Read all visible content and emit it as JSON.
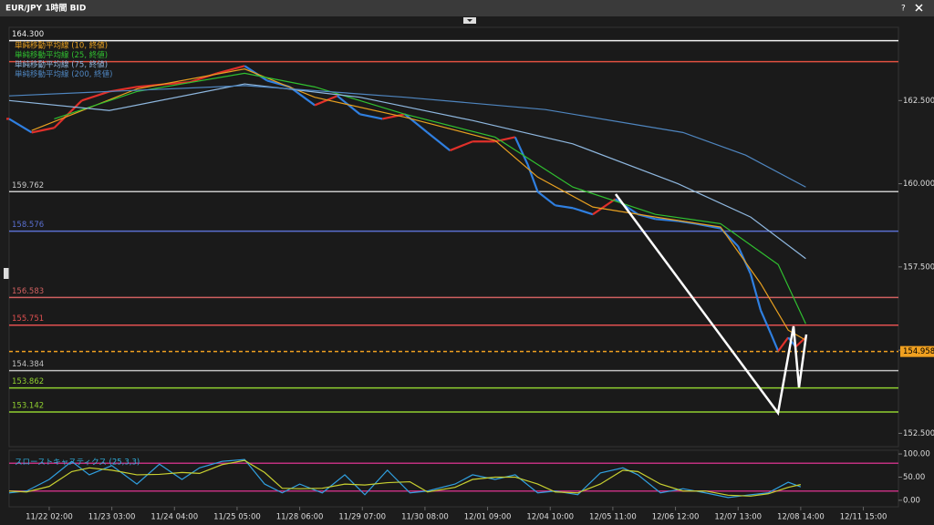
{
  "window": {
    "title": "EUR/JPY 1時間 BID",
    "help": "?"
  },
  "chart_data": [
    {
      "type": "line",
      "xlim": [
        -16,
        339
      ],
      "xticks": [
        {
          "value": 0,
          "label": "11/22 02:00"
        },
        {
          "value": 25,
          "label": "11/23 03:00"
        },
        {
          "value": 50,
          "label": "11/24 04:00"
        },
        {
          "value": 75,
          "label": "11/25 05:00"
        },
        {
          "value": 100,
          "label": "11/28 06:00"
        },
        {
          "value": 125,
          "label": "11/29 07:00"
        },
        {
          "value": 150,
          "label": "11/30 08:00"
        },
        {
          "value": 175,
          "label": "12/01 09:00"
        },
        {
          "value": 200,
          "label": "12/04 10:00"
        },
        {
          "value": 225,
          "label": "12/05 11:00"
        },
        {
          "value": 250,
          "label": "12/06 12:00"
        },
        {
          "value": 275,
          "label": "12/07 13:00"
        },
        {
          "value": 300,
          "label": "12/08 14:00"
        },
        {
          "value": 325,
          "label": "12/11 15:00"
        }
      ],
      "ylim": [
        152.1,
        164.7
      ],
      "yticks": [
        {
          "value": 152.5,
          "label": "152.500"
        },
        {
          "value": 155,
          "label": "155.000"
        },
        {
          "value": 157.5,
          "label": "157.500"
        },
        {
          "value": 160,
          "label": "160.000"
        },
        {
          "value": 162.5,
          "label": "162.500"
        }
      ],
      "series": [
        {
          "up_color": "#e0302a",
          "down_color": "#2f7fe0",
          "x": [
            -16,
            -7,
            2,
            13,
            24,
            35,
            46,
            56,
            67,
            78,
            87,
            96,
            106,
            115,
            124,
            133,
            142,
            151,
            160,
            169,
            178,
            186,
            191,
            195,
            202,
            209,
            217,
            226,
            235,
            242,
            251,
            258,
            268,
            275,
            280,
            284,
            288,
            291,
            295,
            298,
            302
          ],
          "values": [
            161.95,
            161.54,
            161.68,
            162.5,
            162.77,
            162.91,
            162.99,
            163.05,
            163.32,
            163.54,
            163.1,
            162.91,
            162.36,
            162.64,
            162.09,
            161.95,
            162.09,
            161.54,
            161.0,
            161.27,
            161.27,
            161.4,
            160.58,
            159.76,
            159.35,
            159.27,
            159.08,
            159.54,
            159.08,
            158.94,
            158.88,
            158.8,
            158.66,
            158.12,
            157.29,
            156.2,
            155.51,
            154.97,
            155.38,
            155.1,
            155.38
          ]
        },
        {
          "name": "単純移動平均線 (10, 終値)",
          "color": "#e8a020",
          "x": [
            -7,
            35,
            78,
            106,
            142,
            178,
            195,
            217,
            242,
            268,
            284,
            295,
            302
          ],
          "values": [
            161.6,
            162.85,
            163.45,
            162.6,
            162.0,
            161.3,
            160.2,
            159.3,
            159.0,
            158.7,
            157.0,
            155.6,
            155.3
          ]
        },
        {
          "name": "単純移動平均線 (25, 終値)",
          "color": "#30c030",
          "x": [
            2,
            35,
            78,
            106,
            142,
            178,
            209,
            242,
            268,
            291,
            302
          ],
          "values": [
            161.95,
            162.77,
            163.32,
            162.91,
            162.09,
            161.4,
            159.9,
            159.08,
            158.8,
            157.57,
            155.79
          ]
        },
        {
          "name": "単純移動平均線 (75, 終値)",
          "color": "#8fb8e0",
          "x": [
            -16,
            24,
            78,
            124,
            169,
            209,
            251,
            280,
            302
          ],
          "values": [
            162.5,
            162.2,
            163.0,
            162.6,
            161.9,
            161.2,
            160.0,
            159.0,
            157.75
          ]
        },
        {
          "name": "単純移動平均線 (200, 終値)",
          "color": "#4f86c0",
          "x": [
            -16,
            78,
            142,
            198,
            253,
            278,
            302
          ],
          "values": [
            162.64,
            162.95,
            162.6,
            162.23,
            161.54,
            160.86,
            159.9
          ]
        }
      ],
      "levels": [
        {
          "value": 164.3,
          "label": "164.300",
          "color": "#f0f0f0"
        },
        {
          "value": 163.67,
          "color": "#e05040"
        },
        {
          "value": 159.762,
          "label": "159.762",
          "color": "#c8c8c8"
        },
        {
          "value": 158.576,
          "label": "158.576",
          "color": "#5a6fd0"
        },
        {
          "value": 156.583,
          "label": "156.583",
          "color": "#d06060"
        },
        {
          "value": 155.751,
          "label": "155.751",
          "color": "#e05050"
        },
        {
          "value": 154.958,
          "label": "154.958",
          "color": "#f0a020",
          "style": "dashed"
        },
        {
          "value": 154.384,
          "label": "154.384",
          "color": "#c0c0c0"
        },
        {
          "value": 153.862,
          "label": "153.862",
          "color": "#90d030"
        },
        {
          "value": 153.142,
          "label": "153.142",
          "color": "#90d030"
        }
      ]
    },
    {
      "type": "line",
      "title": "スローストキャスティクス (25,3,3)",
      "ylim": [
        -14,
        108
      ],
      "yticks": [
        {
          "value": 100,
          "label": "100.00"
        },
        {
          "value": 50,
          "label": "50.00"
        },
        {
          "value": 0,
          "label": "0.00"
        }
      ],
      "levels": [
        80,
        20
      ],
      "level_color": "#c03080",
      "x": [
        -16,
        -9,
        0,
        9,
        16,
        25,
        35,
        44,
        53,
        60,
        69,
        78,
        86,
        93,
        100,
        109,
        118,
        126,
        135,
        144,
        151,
        162,
        169,
        178,
        186,
        195,
        202,
        211,
        220,
        229,
        235,
        244,
        253,
        262,
        271,
        280,
        287,
        295,
        300
      ],
      "series": [
        {
          "color": "#30a0e0",
          "values": [
            16,
            20,
            45,
            84,
            55,
            75,
            35,
            78,
            45,
            70,
            84,
            88,
            35,
            16,
            35,
            16,
            55,
            12,
            65,
            16,
            20,
            35,
            55,
            45,
            55,
            16,
            20,
            12,
            59,
            70,
            55,
            16,
            25,
            16,
            6,
            12,
            16,
            39,
            29
          ]
        },
        {
          "color": "#c8d030",
          "values": [
            20,
            18,
            30,
            62,
            70,
            65,
            55,
            56,
            60,
            58,
            77,
            86,
            60,
            26,
            25,
            26,
            35,
            33,
            38,
            40,
            18,
            28,
            45,
            50,
            50,
            35,
            18,
            16,
            35,
            65,
            62,
            35,
            20,
            20,
            11,
            9,
            14,
            28,
            34
          ]
        }
      ]
    }
  ]
}
